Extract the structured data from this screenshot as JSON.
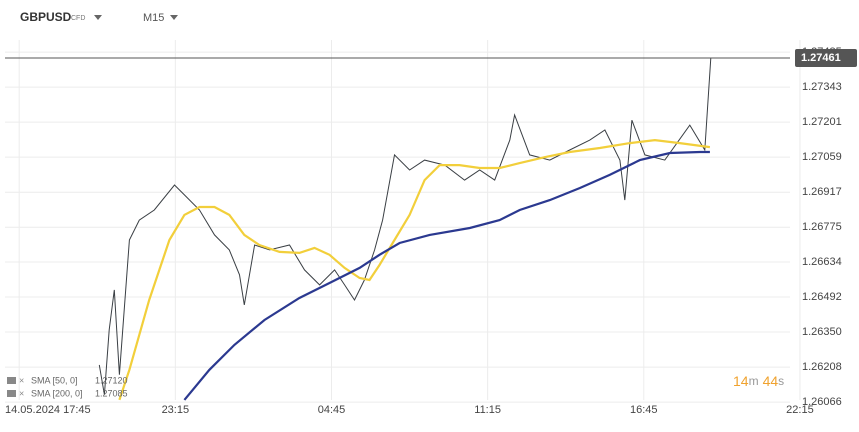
{
  "header": {
    "symbol": "GBPUSD",
    "kind": "CFD",
    "interval": "M15"
  },
  "countdown": {
    "minutes": "14",
    "minutes_unit": "m",
    "seconds": "44",
    "seconds_unit": "s"
  },
  "chart_data": {
    "type": "line",
    "xticks": [
      {
        "value": 0,
        "label": "14.05.2024 17:45"
      },
      {
        "value": 5.5,
        "label": "23:15"
      },
      {
        "value": 11,
        "label": "04:45"
      },
      {
        "value": 16.5,
        "label": "11:15"
      },
      {
        "value": 22,
        "label": "16:45"
      },
      {
        "value": 27.5,
        "label": "22:15"
      }
    ],
    "xlim": [
      -0.5,
      27.15
    ],
    "ylim": [
      1.26034,
      1.27534
    ],
    "yticks": [
      1.27485,
      1.27343,
      1.27201,
      1.27059,
      1.26917,
      1.26775,
      1.26634,
      1.26492,
      {
        "value": 1.2635,
        "label": "1.26350"
      },
      1.26208,
      1.26066
    ],
    "grid": true,
    "series": [
      {
        "name": "GBPUSD",
        "color": "#3a3f44",
        "x": [
          2.82,
          3.0,
          3.17,
          3.35,
          3.53,
          3.88,
          4.23,
          4.76,
          5.47,
          5.82,
          6.35,
          6.88,
          7.4,
          7.76,
          7.93,
          8.29,
          8.82,
          9.52,
          10.05,
          10.58,
          11.11,
          11.46,
          11.81,
          12.16,
          12.52,
          12.8,
          13.22,
          13.75,
          14.28,
          14.99,
          15.69,
          16.22,
          16.75,
          17.28,
          17.45,
          17.98,
          18.69,
          19.39,
          20.1,
          20.63,
          21.16,
          21.33,
          21.58,
          22.04,
          22.74,
          23.62,
          24.15,
          24.36
        ],
        "values": [
          1.26217,
          1.26096,
          1.26359,
          1.26521,
          1.26177,
          1.26723,
          1.26804,
          1.26845,
          1.26946,
          1.26906,
          1.26845,
          1.26744,
          1.26683,
          1.26582,
          1.2646,
          1.26703,
          1.26683,
          1.26703,
          1.26602,
          1.26541,
          1.26602,
          1.26541,
          1.2648,
          1.26561,
          1.26683,
          1.26804,
          1.27068,
          1.27007,
          1.27047,
          1.27027,
          1.26966,
          1.27007,
          1.26966,
          1.27128,
          1.2723,
          1.27068,
          1.27047,
          1.27088,
          1.27128,
          1.27169,
          1.27047,
          1.26885,
          1.27209,
          1.27068,
          1.27047,
          1.27189,
          1.27088,
          1.27461
        ]
      },
      {
        "name": "SMA [50, 0]",
        "legend_label": "1.27120",
        "color": "#f2cf3b",
        "x": [
          3.53,
          3.88,
          4.58,
          5.29,
          5.82,
          6.35,
          6.88,
          7.4,
          7.93,
          8.46,
          9.17,
          9.87,
          10.4,
          10.93,
          11.46,
          11.99,
          12.34,
          12.69,
          13.22,
          13.75,
          14.28,
          14.81,
          15.51,
          16.22,
          16.92,
          17.63,
          18.51,
          19.39,
          20.45,
          21.51,
          22.39,
          23.27,
          24.33
        ],
        "values": [
          1.26075,
          1.26197,
          1.2648,
          1.26723,
          1.26825,
          1.26857,
          1.26857,
          1.26825,
          1.26744,
          1.26703,
          1.26675,
          1.26671,
          1.26691,
          1.26663,
          1.2661,
          1.26569,
          1.26561,
          1.26622,
          1.26723,
          1.26825,
          1.26966,
          1.27027,
          1.27027,
          1.27015,
          1.27015,
          1.27035,
          1.27059,
          1.2708,
          1.27096,
          1.27116,
          1.27128,
          1.27116,
          1.271
        ]
      },
      {
        "name": "SMA [200, 0]",
        "legend_label": "1.27085",
        "color": "#2b3990",
        "x": [
          5.82,
          6.7,
          7.58,
          8.64,
          9.87,
          10.93,
          11.99,
          12.69,
          13.4,
          14.46,
          15.87,
          16.92,
          17.63,
          18.69,
          19.75,
          20.8,
          21.86,
          22.92,
          23.98,
          24.33
        ],
        "values": [
          1.26075,
          1.26197,
          1.26298,
          1.26399,
          1.26488,
          1.26549,
          1.2661,
          1.26663,
          1.26711,
          1.26744,
          1.26772,
          1.26804,
          1.26845,
          1.26885,
          1.26934,
          1.26987,
          1.27047,
          1.27076,
          1.2708,
          1.2708
        ]
      }
    ]
  }
}
